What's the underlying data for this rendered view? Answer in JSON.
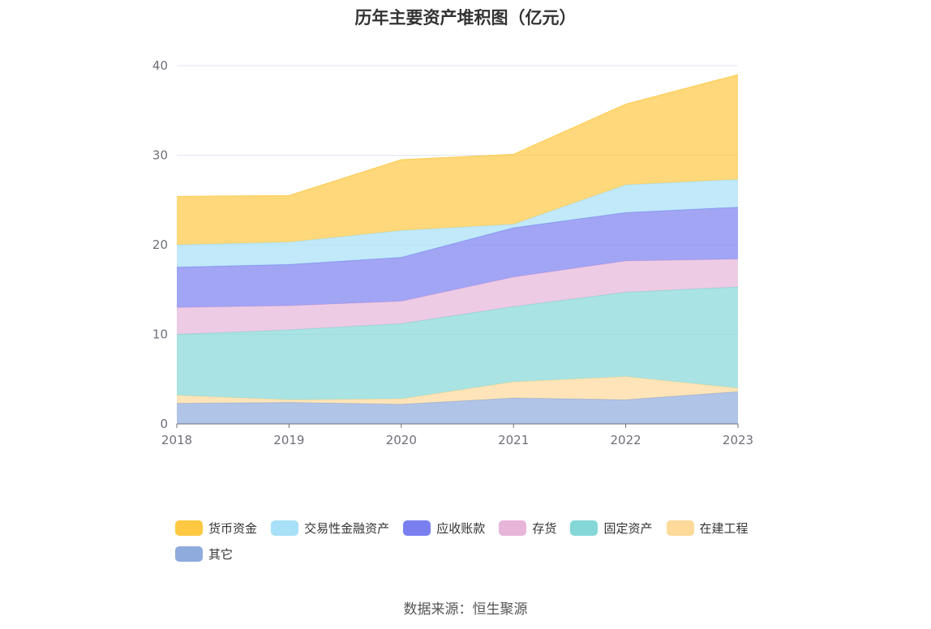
{
  "chart_data": {
    "type": "area",
    "title": "历年主要资产堆积图（亿元）",
    "categories": [
      "2018",
      "2019",
      "2020",
      "2021",
      "2022",
      "2023"
    ],
    "ylim": [
      0,
      40
    ],
    "yticks": [
      0,
      10,
      20,
      30,
      40
    ],
    "stacked": true,
    "grid": true,
    "legend_position": "bottom",
    "series": [
      {
        "name": "其它",
        "color": "#8fabdd",
        "values": [
          2.3,
          2.4,
          2.2,
          2.9,
          2.7,
          3.6
        ]
      },
      {
        "name": "在建工程",
        "color": "#fdd99a",
        "values": [
          0.9,
          0.3,
          0.6,
          1.8,
          2.6,
          0.4
        ]
      },
      {
        "name": "固定资产",
        "color": "#85d7d7",
        "values": [
          6.8,
          7.8,
          8.4,
          8.4,
          9.4,
          11.3
        ]
      },
      {
        "name": "存货",
        "color": "#e6b5d8",
        "values": [
          3.0,
          2.7,
          2.5,
          3.3,
          3.5,
          3.1
        ]
      },
      {
        "name": "应收账款",
        "color": "#7a7ff0",
        "values": [
          4.5,
          4.6,
          4.9,
          5.5,
          5.4,
          5.8
        ]
      },
      {
        "name": "交易性金融资产",
        "color": "#a7e0f7",
        "values": [
          2.5,
          2.5,
          3.0,
          0.4,
          3.1,
          3.1
        ]
      },
      {
        "name": "货币资金",
        "color": "#fec842",
        "values": [
          5.4,
          5.2,
          7.9,
          7.8,
          9.0,
          11.7
        ]
      }
    ]
  },
  "legend": {
    "items": [
      {
        "label": "货币资金",
        "color": "#fec842"
      },
      {
        "label": "交易性金融资产",
        "color": "#a7e0f7"
      },
      {
        "label": "应收账款",
        "color": "#7a7ff0"
      },
      {
        "label": "存货",
        "color": "#e6b5d8"
      },
      {
        "label": "固定资产",
        "color": "#85d7d7"
      },
      {
        "label": "在建工程",
        "color": "#fdd99a"
      },
      {
        "label": "其它",
        "color": "#8fabdd"
      }
    ]
  },
  "footer": {
    "source": "数据来源：恒生聚源"
  }
}
